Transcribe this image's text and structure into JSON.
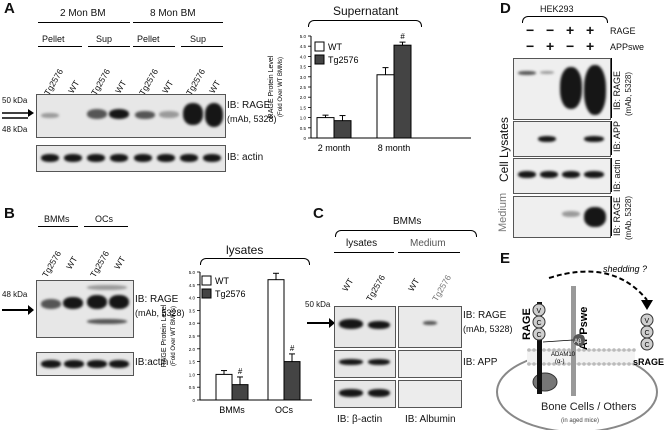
{
  "panelA": {
    "label": "A",
    "groups": [
      "2 Mon BM",
      "8 Mon BM"
    ],
    "fractions": [
      "Pellet",
      "Sup",
      "Pellet",
      "Sup"
    ],
    "lanes": [
      "Tg2576",
      "WT",
      "Tg2576",
      "WT",
      "Tg2576",
      "WT",
      "Tg2576",
      "WT"
    ],
    "mw_top": "50 kDa",
    "mw_bottom": "48 kDa",
    "ib_rage_line1": "IB: RAGE",
    "ib_rage_line2": "(mAb, 5328)",
    "ib_actin": "IB: actin",
    "supernatant_title": "Supernatant",
    "chart_data": {
      "type": "bar",
      "title": "Supernatant",
      "categories": [
        "2 month",
        "8 month"
      ],
      "ylabel_line1": "RAGE Protein Level",
      "ylabel_line2": "(Fold Over WT BMMs)",
      "ylim": [
        0,
        5
      ],
      "yticks": [
        "0",
        "0.5",
        "1.0",
        "1.5",
        "2.0",
        "2.5",
        "3.0",
        "3.5",
        "4.0",
        "4.5",
        "5.0"
      ],
      "series": [
        {
          "name": "WT",
          "values": [
            1.0,
            3.1
          ],
          "errors": [
            0.12,
            0.35
          ],
          "color": "#ffffff"
        },
        {
          "name": "Tg2576",
          "values": [
            0.85,
            4.55
          ],
          "errors": [
            0.25,
            0.15
          ],
          "color": "#444444"
        }
      ],
      "annotations": [
        {
          "text": "#",
          "category": "8 month",
          "series": "Tg2576"
        }
      ]
    }
  },
  "panelB": {
    "label": "B",
    "groups": [
      "BMMs",
      "OCs"
    ],
    "lanes": [
      "Tg2576",
      "WT",
      "Tg2576",
      "WT"
    ],
    "mw": "48 kDa",
    "ib_rage_line1": "IB: RAGE",
    "ib_rage_line2": "(mAb, 5328)",
    "ib_actin": "IB:actin",
    "lysates_title": "lysates",
    "chart_data": {
      "type": "bar",
      "title": "lysates",
      "categories": [
        "BMMs",
        "OCs"
      ],
      "ylabel_line1": "RAGE Protein Level",
      "ylabel_line2": "(Fold Over WT BMMs)",
      "ylim": [
        0,
        5
      ],
      "yticks": [
        "0",
        "0.5",
        "1.0",
        "1.5",
        "2.0",
        "2.5",
        "3.0",
        "3.5",
        "4.0",
        "4.5",
        "5.0"
      ],
      "series": [
        {
          "name": "WT",
          "values": [
            1.0,
            4.7
          ],
          "errors": [
            0.15,
            0.25
          ],
          "color": "#ffffff"
        },
        {
          "name": "Tg2576",
          "values": [
            0.6,
            1.5
          ],
          "errors": [
            0.3,
            0.3
          ],
          "color": "#444444"
        }
      ],
      "annotations": [
        {
          "text": "#",
          "category": "BMMs",
          "series": "Tg2576"
        },
        {
          "text": "#",
          "category": "OCs",
          "series": "Tg2576"
        }
      ]
    }
  },
  "panelC": {
    "label": "C",
    "header": "BMMs",
    "sections": [
      "lysates",
      "Medium"
    ],
    "lanes": [
      "WT",
      "Tg2576",
      "WT",
      "Tg2576"
    ],
    "mw": "50 kDa",
    "ib_rage_line1": "IB: RAGE",
    "ib_rage_line2": "(mAb, 5328)",
    "ib_app": "IB: APP",
    "ib_beta_actin": "IB: β-actin",
    "ib_albumin": "IB: Albumin"
  },
  "panelD": {
    "label": "D",
    "cell_line": "HEK293",
    "conditions": [
      "RAGE",
      "APPswe"
    ],
    "signs_rage": [
      "−",
      "−",
      "+",
      "+"
    ],
    "signs_app": [
      "−",
      "+",
      "−",
      "+"
    ],
    "cell_lysates": "Cell Lysates",
    "medium": "Medium",
    "ib_rage_line1": "IB: RAGE",
    "ib_rage_line2": "(mAb, 5328)",
    "ib_app": "IB: APP",
    "ib_actin": "IB: actin",
    "ib_rage_medium_line1": "IB: RAGE",
    "ib_rage_medium_line2": "(mAb, 5328)"
  },
  "panelE": {
    "label": "E",
    "shedding": "shedding ?",
    "rage": "RAGE",
    "appswe": "APPswe",
    "domain_v": "V",
    "domain_c": "C",
    "abeta": "Aβ",
    "adam": "ADAM10",
    "alpha": "(α-)",
    "srage": "sRAGE",
    "bone_cells": "Bone Cells / Others",
    "aged_mice": "(in aged mice)"
  }
}
